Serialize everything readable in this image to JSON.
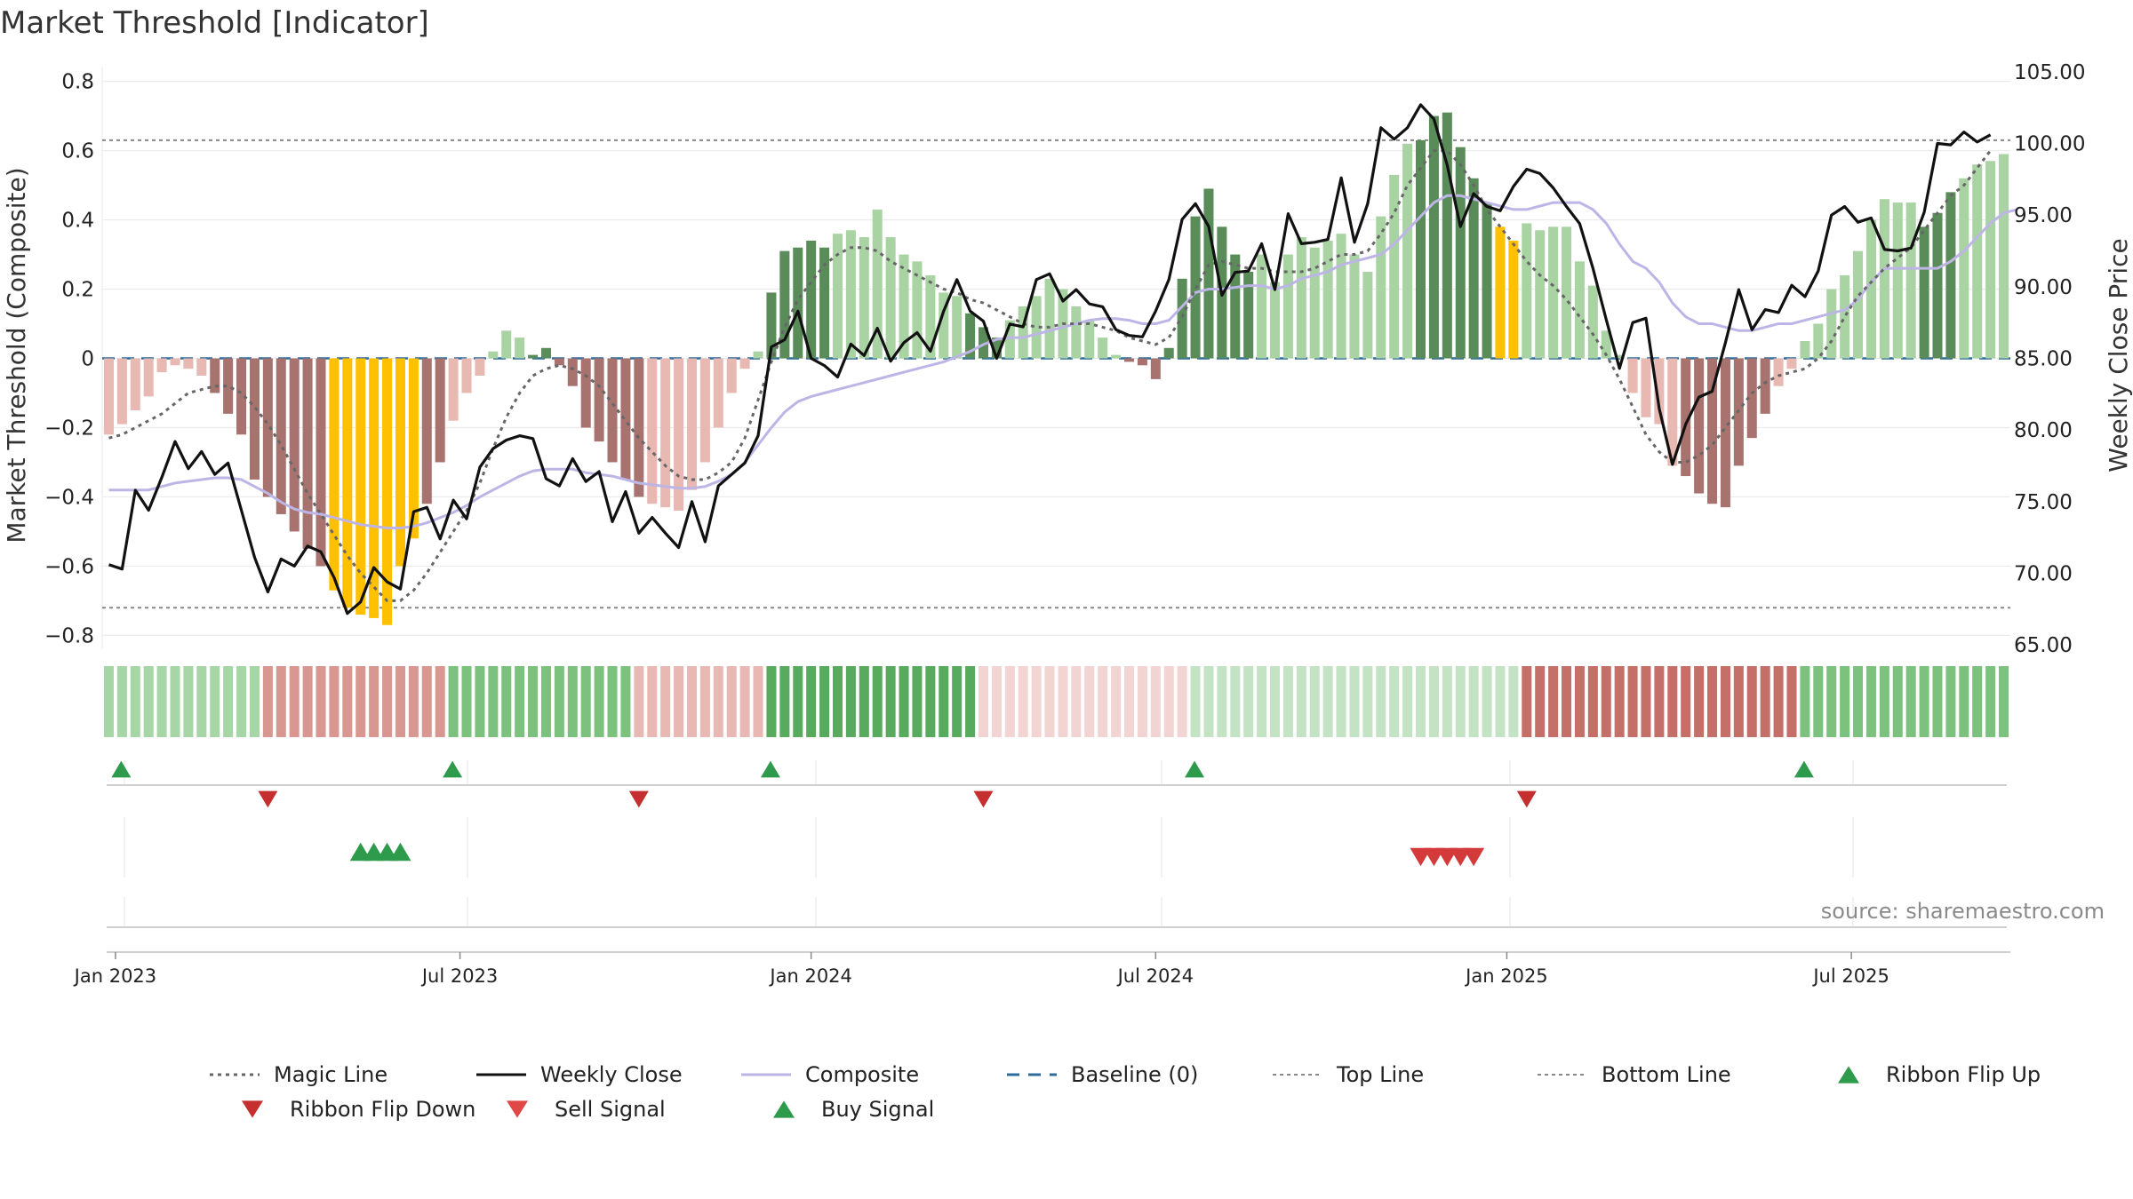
{
  "title": "Market Threshold [Indicator]",
  "source": "source: sharemaestro.com",
  "colors": {
    "strong_pos": "#5a8c5a",
    "weak_pos": "#a9d3a3",
    "strong_neg": "#a8736f",
    "weak_neg": "#e8b8b2",
    "extreme": "#ffc000",
    "close": "#111111",
    "composite": "#bdb5e6",
    "magic": "#666666",
    "baseline": "#2f6c9e",
    "threshold": "#888888",
    "buy": "#2e9a4b",
    "sell": "#d43a3a"
  },
  "chart_data": {
    "type": "bar",
    "title": "Market Threshold [Indicator]",
    "y_left": {
      "label": "Market Threshold (Composite)",
      "range": [
        -0.84,
        0.84
      ],
      "ticks": [
        {
          "v": 0.8,
          "t": "0.8"
        },
        {
          "v": 0.6,
          "t": "0.6"
        },
        {
          "v": 0.4,
          "t": "0.4"
        },
        {
          "v": 0.2,
          "t": "0.2"
        },
        {
          "v": 0,
          "t": "0"
        },
        {
          "v": -0.2,
          "t": "−0.2"
        },
        {
          "v": -0.4,
          "t": "−0.4"
        },
        {
          "v": -0.6,
          "t": "−0.6"
        },
        {
          "v": -0.8,
          "t": "−0.8"
        }
      ]
    },
    "y_right": {
      "label": "Weekly Close Price",
      "range": [
        64.7,
        105.3
      ],
      "ticks": [
        {
          "v": 105,
          "t": "105.00"
        },
        {
          "v": 100,
          "t": "100.00"
        },
        {
          "v": 95,
          "t": "95.00"
        },
        {
          "v": 90,
          "t": "90.00"
        },
        {
          "v": 85,
          "t": "85.00"
        },
        {
          "v": 80,
          "t": "80.00"
        },
        {
          "v": 75,
          "t": "75.00"
        },
        {
          "v": 70,
          "t": "70.00"
        },
        {
          "v": 65,
          "t": "65.00"
        }
      ]
    },
    "x_axis": {
      "start": "2022-12-26",
      "weeks": 144,
      "ticks": [
        {
          "week": 1,
          "t": "Jan 2023"
        },
        {
          "week": 27,
          "t": "Jul 2023"
        },
        {
          "week": 53.5,
          "t": "Jan 2024"
        },
        {
          "week": 79.5,
          "t": "Jul 2024"
        },
        {
          "week": 106,
          "t": "Jan 2025"
        },
        {
          "week": 132,
          "t": "Jul 2025"
        }
      ]
    },
    "top_line": 0.63,
    "bottom_line": -0.72,
    "baseline": 0,
    "composite_bars": [
      -0.22,
      -0.19,
      -0.15,
      -0.11,
      -0.04,
      -0.02,
      -0.03,
      -0.05,
      -0.1,
      -0.16,
      -0.22,
      -0.35,
      -0.4,
      -0.45,
      -0.5,
      -0.55,
      -0.6,
      -0.67,
      -0.72,
      -0.74,
      -0.75,
      -0.77,
      -0.6,
      -0.52,
      -0.42,
      -0.3,
      -0.18,
      -0.1,
      -0.05,
      0.02,
      0.08,
      0.06,
      0.01,
      0.03,
      -0.02,
      -0.08,
      -0.2,
      -0.24,
      -0.3,
      -0.35,
      -0.4,
      -0.42,
      -0.43,
      -0.44,
      -0.38,
      -0.3,
      -0.2,
      -0.1,
      -0.03,
      0.02,
      0.19,
      0.31,
      0.32,
      0.34,
      0.32,
      0.36,
      0.37,
      0.35,
      0.43,
      0.35,
      0.3,
      0.28,
      0.24,
      0.19,
      0.18,
      0.13,
      0.09,
      0.06,
      0.11,
      0.15,
      0.18,
      0.23,
      0.2,
      0.15,
      0.11,
      0.06,
      0.01,
      -0.01,
      -0.02,
      -0.06,
      0.03,
      0.23,
      0.41,
      0.49,
      0.38,
      0.3,
      0.25,
      0.3,
      0.22,
      0.3,
      0.35,
      0.32,
      0.34,
      0.36,
      0.3,
      0.25,
      0.41,
      0.53,
      0.62,
      0.63,
      0.7,
      0.71,
      0.61,
      0.52,
      0.45,
      0.38,
      0.34,
      0.39,
      0.37,
      0.38,
      0.38,
      0.28,
      0.21,
      0.08,
      0.01,
      -0.1,
      -0.17,
      -0.19,
      -0.31,
      -0.34,
      -0.39,
      -0.42,
      -0.43,
      -0.31,
      -0.23,
      -0.16,
      -0.08,
      -0.03,
      0.05,
      0.1,
      0.2,
      0.24,
      0.31,
      0.4,
      0.46,
      0.45,
      0.45,
      0.38,
      0.42,
      0.48,
      0.52,
      0.56,
      0.57,
      0.59
    ],
    "bar_categories": "11111111222222222333333322111111222222222111111111222221111111111222111111111222222222211111111111122222233111111111111222222211111111111222111",
    "weekly_close": [
      70.6,
      70.3,
      75.8,
      74.4,
      76.7,
      79.2,
      77.3,
      78.5,
      76.9,
      77.7,
      74.4,
      71.1,
      68.7,
      71.0,
      70.5,
      71.9,
      71.5,
      69.7,
      67.2,
      68.0,
      70.4,
      69.4,
      68.9,
      74.3,
      74.6,
      72.4,
      75.1,
      73.8,
      77.4,
      78.7,
      79.3,
      79.6,
      79.4,
      76.6,
      76.1,
      78.0,
      76.4,
      77.1,
      73.6,
      75.7,
      72.8,
      73.9,
      72.8,
      71.8,
      75.0,
      72.2,
      76.1,
      76.9,
      77.7,
      79.6,
      85.8,
      86.3,
      88.3,
      85.0,
      84.5,
      83.7,
      86.0,
      85.2,
      87.1,
      84.8,
      86.1,
      86.8,
      85.5,
      88.3,
      90.5,
      88.3,
      87.6,
      85.0,
      87.4,
      87.2,
      90.5,
      90.9,
      89.0,
      89.8,
      88.8,
      88.6,
      87.0,
      86.6,
      86.5,
      88.3,
      90.5,
      94.7,
      95.8,
      94.2,
      89.4,
      91.0,
      91.1,
      93.0,
      89.8,
      95.1,
      93.0,
      93.1,
      93.3,
      97.6,
      93.1,
      95.8,
      101.1,
      100.3,
      101.1,
      102.7,
      101.7,
      98.5,
      94.2,
      96.5,
      95.6,
      95.3,
      97.0,
      98.2,
      97.9,
      96.9,
      95.6,
      94.4,
      91.3,
      87.7,
      84.3,
      87.5,
      87.8,
      81.5,
      77.6,
      80.4,
      82.3,
      82.7,
      86.1,
      89.8,
      87.0,
      88.4,
      88.2,
      90.1,
      89.3,
      91.1,
      95.0,
      95.6,
      94.5,
      94.8,
      92.6,
      92.5,
      92.7,
      95.2,
      100.0,
      99.9,
      100.8,
      100.1,
      100.6
    ],
    "composite_line": [
      -0.38,
      -0.38,
      -0.38,
      -0.38,
      -0.37,
      -0.36,
      -0.355,
      -0.35,
      -0.345,
      -0.345,
      -0.35,
      -0.37,
      -0.39,
      -0.415,
      -0.435,
      -0.445,
      -0.45,
      -0.46,
      -0.47,
      -0.48,
      -0.485,
      -0.49,
      -0.49,
      -0.485,
      -0.475,
      -0.46,
      -0.445,
      -0.425,
      -0.4,
      -0.38,
      -0.36,
      -0.34,
      -0.325,
      -0.32,
      -0.32,
      -0.32,
      -0.33,
      -0.335,
      -0.34,
      -0.35,
      -0.36,
      -0.365,
      -0.37,
      -0.375,
      -0.375,
      -0.37,
      -0.355,
      -0.335,
      -0.3,
      -0.25,
      -0.2,
      -0.155,
      -0.125,
      -0.11,
      -0.1,
      -0.09,
      -0.08,
      -0.07,
      -0.06,
      -0.05,
      -0.04,
      -0.03,
      -0.02,
      -0.01,
      0.005,
      0.02,
      0.04,
      0.055,
      0.06,
      0.06,
      0.07,
      0.08,
      0.09,
      0.1,
      0.11,
      0.115,
      0.115,
      0.11,
      0.1,
      0.1,
      0.11,
      0.15,
      0.19,
      0.2,
      0.2,
      0.205,
      0.21,
      0.21,
      0.2,
      0.21,
      0.23,
      0.24,
      0.25,
      0.27,
      0.28,
      0.29,
      0.3,
      0.33,
      0.37,
      0.41,
      0.45,
      0.47,
      0.47,
      0.46,
      0.45,
      0.44,
      0.43,
      0.43,
      0.44,
      0.45,
      0.45,
      0.45,
      0.43,
      0.39,
      0.33,
      0.28,
      0.26,
      0.22,
      0.16,
      0.12,
      0.1,
      0.1,
      0.09,
      0.08,
      0.08,
      0.09,
      0.1,
      0.1,
      0.11,
      0.12,
      0.13,
      0.14,
      0.17,
      0.22,
      0.26,
      0.26,
      0.26,
      0.26,
      0.26,
      0.28,
      0.31,
      0.35,
      0.39,
      0.42,
      0.43
    ],
    "magic_line": [
      -0.23,
      -0.22,
      -0.2,
      -0.18,
      -0.16,
      -0.13,
      -0.1,
      -0.09,
      -0.08,
      -0.08,
      -0.1,
      -0.14,
      -0.19,
      -0.25,
      -0.32,
      -0.39,
      -0.45,
      -0.51,
      -0.57,
      -0.62,
      -0.66,
      -0.7,
      -0.7,
      -0.67,
      -0.62,
      -0.56,
      -0.5,
      -0.44,
      -0.36,
      -0.26,
      -0.17,
      -0.1,
      -0.05,
      -0.03,
      -0.02,
      -0.03,
      -0.05,
      -0.08,
      -0.13,
      -0.18,
      -0.23,
      -0.27,
      -0.31,
      -0.34,
      -0.35,
      -0.35,
      -0.33,
      -0.3,
      -0.23,
      -0.12,
      -0.01,
      0.09,
      0.17,
      0.22,
      0.27,
      0.3,
      0.32,
      0.32,
      0.31,
      0.28,
      0.26,
      0.24,
      0.22,
      0.2,
      0.19,
      0.17,
      0.16,
      0.14,
      0.12,
      0.1,
      0.09,
      0.09,
      0.1,
      0.1,
      0.1,
      0.09,
      0.08,
      0.06,
      0.05,
      0.04,
      0.06,
      0.12,
      0.2,
      0.27,
      0.28,
      0.27,
      0.26,
      0.26,
      0.25,
      0.25,
      0.25,
      0.26,
      0.28,
      0.3,
      0.3,
      0.31,
      0.36,
      0.42,
      0.5,
      0.55,
      0.6,
      0.6,
      0.56,
      0.5,
      0.43,
      0.38,
      0.33,
      0.28,
      0.24,
      0.21,
      0.17,
      0.12,
      0.07,
      0.01,
      -0.06,
      -0.14,
      -0.22,
      -0.27,
      -0.3,
      -0.3,
      -0.28,
      -0.25,
      -0.2,
      -0.15,
      -0.1,
      -0.07,
      -0.05,
      -0.04,
      -0.03,
      0.0,
      0.05,
      0.12,
      0.18,
      0.22,
      0.26,
      0.29,
      0.32,
      0.37,
      0.42,
      0.47,
      0.5,
      0.55,
      0.6
    ],
    "ribbon": [
      1,
      4,
      3,
      3,
      3,
      3,
      3,
      3,
      3,
      3,
      3,
      3,
      3,
      3,
      2,
      2,
      2,
      2,
      2,
      2,
      2,
      2,
      2,
      2,
      2,
      2,
      2,
      2,
      3,
      3,
      3,
      3,
      4,
      4,
      4,
      4,
      4,
      4,
      4,
      3,
      3,
      3,
      2,
      2,
      2,
      2,
      2,
      2,
      1,
      1,
      1,
      1,
      4,
      4,
      4,
      4,
      4,
      4,
      4,
      4,
      4,
      4,
      4,
      4,
      4,
      4,
      4,
      4,
      4,
      3,
      3,
      3,
      3,
      3,
      3,
      3,
      3,
      3,
      3,
      3,
      1,
      1,
      1,
      1,
      1,
      1,
      1,
      1,
      1,
      1,
      1,
      1,
      1,
      1,
      1,
      1,
      1,
      1,
      1,
      1,
      1,
      1,
      1,
      1,
      1,
      1,
      1,
      1,
      1,
      1,
      1,
      1,
      1,
      1,
      1,
      1,
      1,
      1,
      1,
      1,
      1,
      1,
      1,
      1,
      1,
      1,
      1,
      1,
      1,
      1,
      1,
      1,
      1,
      1,
      1,
      1,
      1,
      3,
      3,
      3,
      3,
      3,
      3,
      3,
      3,
      3,
      3,
      3,
      3,
      3,
      3,
      3,
      3,
      3,
      3,
      3,
      3,
      3
    ],
    "ribbon_signs": "+-+-+-+-",
    "ribbon_segments": [
      {
        "from": 0,
        "to": 12,
        "sign": 1,
        "level": 2
      },
      {
        "from": 12,
        "to": 26,
        "sign": -1,
        "level": 3
      },
      {
        "from": 26,
        "to": 40,
        "sign": 1,
        "level": 3
      },
      {
        "from": 40,
        "to": 50,
        "sign": -1,
        "level": 2
      },
      {
        "from": 50,
        "to": 66,
        "sign": 1,
        "level": 4
      },
      {
        "from": 66,
        "to": 82,
        "sign": -1,
        "level": 1
      },
      {
        "from": 82,
        "to": 107,
        "sign": 1,
        "level": 1
      },
      {
        "from": 107,
        "to": 128,
        "sign": -1,
        "level": 4
      },
      {
        "from": 128,
        "to": 144,
        "sign": 1,
        "level": 3
      }
    ],
    "ribbon_flip_up_weeks": [
      1,
      26,
      50,
      82,
      128
    ],
    "ribbon_flip_down_weeks": [
      12,
      40,
      66,
      107
    ],
    "buy_signal_weeks": [
      19,
      20,
      21,
      22
    ],
    "sell_signal_weeks": [
      99,
      100,
      101,
      102,
      103
    ]
  },
  "legend": [
    {
      "label": "Magic Line",
      "symbol": "dotted",
      "color": "#666666"
    },
    {
      "label": "Weekly Close",
      "symbol": "solid",
      "color": "#111111"
    },
    {
      "label": "Composite",
      "symbol": "solid",
      "color": "#bdb5e6"
    },
    {
      "label": "Baseline (0)",
      "symbol": "dashed",
      "color": "#2f6c9e"
    },
    {
      "label": "Top Line",
      "symbol": "dotted-thin",
      "color": "#888888"
    },
    {
      "label": "Bottom Line",
      "symbol": "dotted-thin",
      "color": "#888888"
    },
    {
      "label": "Ribbon Flip Up",
      "symbol": "triangle-up",
      "color": "#2e9a4b"
    },
    {
      "label": "Ribbon Flip Down",
      "symbol": "triangle-down",
      "color": "#c62f2f"
    },
    {
      "label": "Sell Signal",
      "symbol": "triangle-down",
      "color": "#e04848"
    },
    {
      "label": "Buy Signal",
      "symbol": "triangle-up",
      "color": "#2e9a4b"
    }
  ]
}
